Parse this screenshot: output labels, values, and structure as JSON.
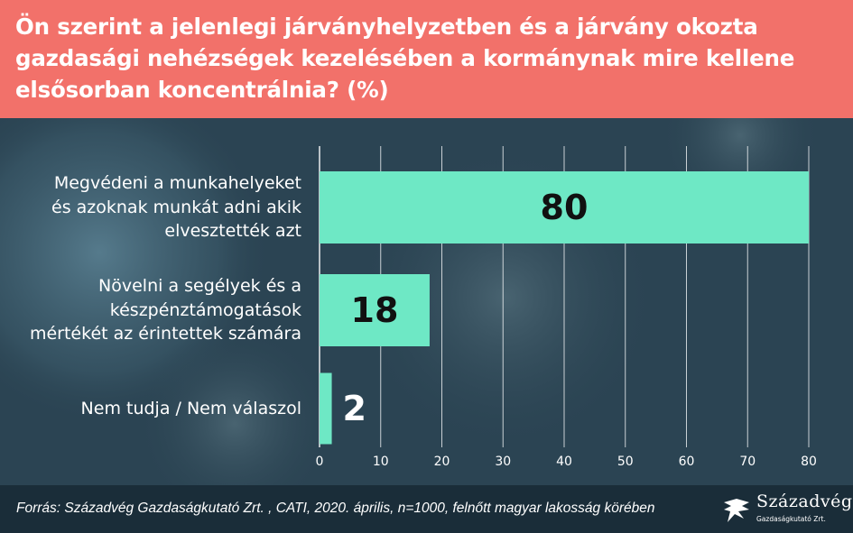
{
  "header": {
    "title": "Ön szerint a jelenlegi járványhelyzetben és a járvány okozta gazdasági nehézségek kezelésében a kormánynak mire kellene elsősorban koncentrálnia? (%)"
  },
  "colors": {
    "header_bg": "#f2716a",
    "bar": "#6ee8c5",
    "background": "#2b4453",
    "footer_bg": "#1a2d39"
  },
  "chart_data": {
    "type": "bar",
    "orientation": "horizontal",
    "categories": [
      [
        "Megvédeni a munkahelyeket",
        "és azoknak munkát adni akik",
        "elvesztették azt"
      ],
      [
        "Növelni a segélyek és a",
        "készpénztámogatások",
        "mértékét az érintettek számára"
      ],
      [
        "Nem tudja / Nem válaszol"
      ]
    ],
    "values": [
      80,
      18,
      2
    ],
    "value_labels": [
      "80",
      "18",
      "2"
    ],
    "xlim": [
      0,
      80
    ],
    "xticks": [
      "0",
      "10",
      "20",
      "30",
      "40",
      "50",
      "60",
      "70",
      "80"
    ],
    "grid": true
  },
  "footer": {
    "source": "Forrás: Századvég Gazdaságkutató Zrt. , CATI, 2020. április, n=1000, felnőtt magyar lakosság körében",
    "logo_name": "Századvég",
    "logo_sub": "Gazdaságkutató Zrt."
  }
}
